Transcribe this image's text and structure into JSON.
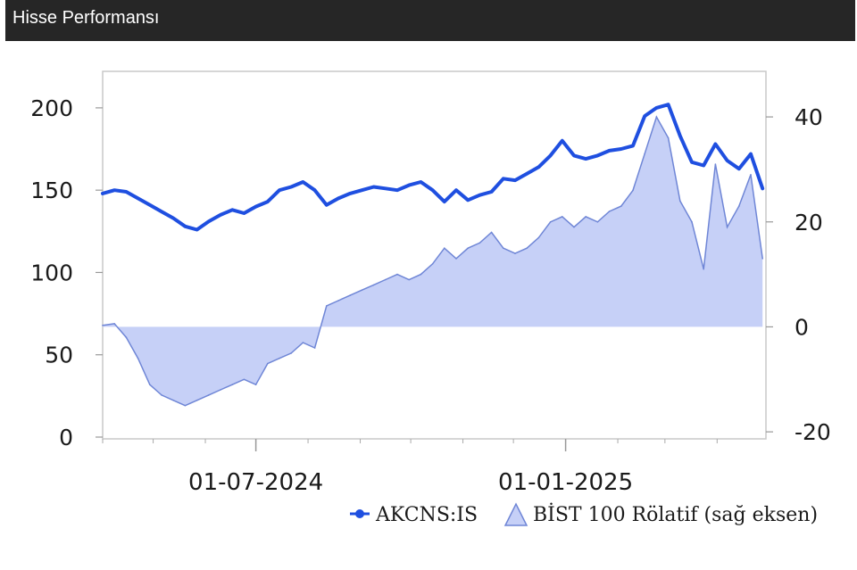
{
  "header": {
    "title": "Hisse Performansı"
  },
  "chart_data": {
    "type": "line",
    "title": "",
    "x_start": "2024-04-01",
    "x_end": "2025-04-30",
    "x_ticks": [
      {
        "date": "2024-07-01",
        "label": "01-07-2024"
      },
      {
        "date": "2025-01-01",
        "label": "01-01-2025"
      }
    ],
    "y_left": {
      "ylim": [
        0,
        220
      ],
      "ticks": [
        0,
        50,
        100,
        150,
        200
      ]
    },
    "y_right": {
      "ylim": [
        -21,
        48
      ],
      "ticks": [
        -20,
        0,
        20,
        40
      ]
    },
    "grid": false,
    "legend_position": "bottom-right",
    "series": [
      {
        "name": "AKCNS:IS",
        "type": "line",
        "axis": "left",
        "color": "#1f4fe0",
        "points": [
          [
            "2024-04-01",
            148
          ],
          [
            "2024-04-08",
            150
          ],
          [
            "2024-04-15",
            149
          ],
          [
            "2024-04-22",
            145
          ],
          [
            "2024-04-29",
            141
          ],
          [
            "2024-05-06",
            137
          ],
          [
            "2024-05-13",
            133
          ],
          [
            "2024-05-20",
            128
          ],
          [
            "2024-05-27",
            126
          ],
          [
            "2024-06-03",
            131
          ],
          [
            "2024-06-10",
            135
          ],
          [
            "2024-06-17",
            138
          ],
          [
            "2024-06-24",
            136
          ],
          [
            "2024-07-01",
            140
          ],
          [
            "2024-07-08",
            143
          ],
          [
            "2024-07-15",
            150
          ],
          [
            "2024-07-22",
            152
          ],
          [
            "2024-07-29",
            155
          ],
          [
            "2024-08-05",
            150
          ],
          [
            "2024-08-12",
            141
          ],
          [
            "2024-08-19",
            145
          ],
          [
            "2024-08-26",
            148
          ],
          [
            "2024-09-02",
            150
          ],
          [
            "2024-09-09",
            152
          ],
          [
            "2024-09-16",
            151
          ],
          [
            "2024-09-23",
            150
          ],
          [
            "2024-09-30",
            153
          ],
          [
            "2024-10-07",
            155
          ],
          [
            "2024-10-14",
            150
          ],
          [
            "2024-10-21",
            143
          ],
          [
            "2024-10-28",
            150
          ],
          [
            "2024-11-04",
            144
          ],
          [
            "2024-11-11",
            147
          ],
          [
            "2024-11-18",
            149
          ],
          [
            "2024-11-25",
            157
          ],
          [
            "2024-12-02",
            156
          ],
          [
            "2024-12-09",
            160
          ],
          [
            "2024-12-16",
            164
          ],
          [
            "2024-12-23",
            171
          ],
          [
            "2024-12-30",
            180
          ],
          [
            "2025-01-06",
            171
          ],
          [
            "2025-01-13",
            169
          ],
          [
            "2025-01-20",
            171
          ],
          [
            "2025-01-27",
            174
          ],
          [
            "2025-02-03",
            175
          ],
          [
            "2025-02-10",
            177
          ],
          [
            "2025-02-17",
            195
          ],
          [
            "2025-02-24",
            200
          ],
          [
            "2025-03-03",
            202
          ],
          [
            "2025-03-10",
            183
          ],
          [
            "2025-03-17",
            167
          ],
          [
            "2025-03-24",
            165
          ],
          [
            "2025-03-31",
            178
          ],
          [
            "2025-04-07",
            168
          ],
          [
            "2025-04-14",
            163
          ],
          [
            "2025-04-21",
            172
          ],
          [
            "2025-04-28",
            151
          ]
        ]
      },
      {
        "name": "BİST 100 Rölatif (sağ eksen)",
        "type": "area",
        "axis": "right",
        "color": "#6f86d6",
        "fill": "#c6d0f7",
        "points": [
          [
            "2024-04-01",
            0.3
          ],
          [
            "2024-04-08",
            0.6
          ],
          [
            "2024-04-15",
            -2
          ],
          [
            "2024-04-22",
            -6
          ],
          [
            "2024-04-29",
            -11
          ],
          [
            "2024-05-06",
            -13
          ],
          [
            "2024-05-13",
            -14
          ],
          [
            "2024-05-20",
            -15
          ],
          [
            "2024-05-27",
            -14
          ],
          [
            "2024-06-03",
            -13
          ],
          [
            "2024-06-10",
            -12
          ],
          [
            "2024-06-17",
            -11
          ],
          [
            "2024-06-24",
            -10
          ],
          [
            "2024-07-01",
            -11
          ],
          [
            "2024-07-08",
            -7
          ],
          [
            "2024-07-15",
            -6
          ],
          [
            "2024-07-22",
            -5
          ],
          [
            "2024-07-29",
            -3
          ],
          [
            "2024-08-05",
            -4
          ],
          [
            "2024-08-12",
            4
          ],
          [
            "2024-08-19",
            5
          ],
          [
            "2024-08-26",
            6
          ],
          [
            "2024-09-02",
            7
          ],
          [
            "2024-09-09",
            8
          ],
          [
            "2024-09-16",
            9
          ],
          [
            "2024-09-23",
            10
          ],
          [
            "2024-09-30",
            9
          ],
          [
            "2024-10-07",
            10
          ],
          [
            "2024-10-14",
            12
          ],
          [
            "2024-10-21",
            15
          ],
          [
            "2024-10-28",
            13
          ],
          [
            "2024-11-04",
            15
          ],
          [
            "2024-11-11",
            16
          ],
          [
            "2024-11-18",
            18
          ],
          [
            "2024-11-25",
            15
          ],
          [
            "2024-12-02",
            14
          ],
          [
            "2024-12-09",
            15
          ],
          [
            "2024-12-16",
            17
          ],
          [
            "2024-12-23",
            20
          ],
          [
            "2024-12-30",
            21
          ],
          [
            "2025-01-06",
            19
          ],
          [
            "2025-01-13",
            21
          ],
          [
            "2025-01-20",
            20
          ],
          [
            "2025-01-27",
            22
          ],
          [
            "2025-02-03",
            23
          ],
          [
            "2025-02-10",
            26
          ],
          [
            "2025-02-17",
            33
          ],
          [
            "2025-02-24",
            40
          ],
          [
            "2025-03-03",
            36
          ],
          [
            "2025-03-10",
            24
          ],
          [
            "2025-03-17",
            20
          ],
          [
            "2025-03-24",
            11
          ],
          [
            "2025-03-31",
            31
          ],
          [
            "2025-04-07",
            19
          ],
          [
            "2025-04-14",
            23
          ],
          [
            "2025-04-21",
            29
          ],
          [
            "2025-04-28",
            13
          ]
        ]
      }
    ]
  }
}
